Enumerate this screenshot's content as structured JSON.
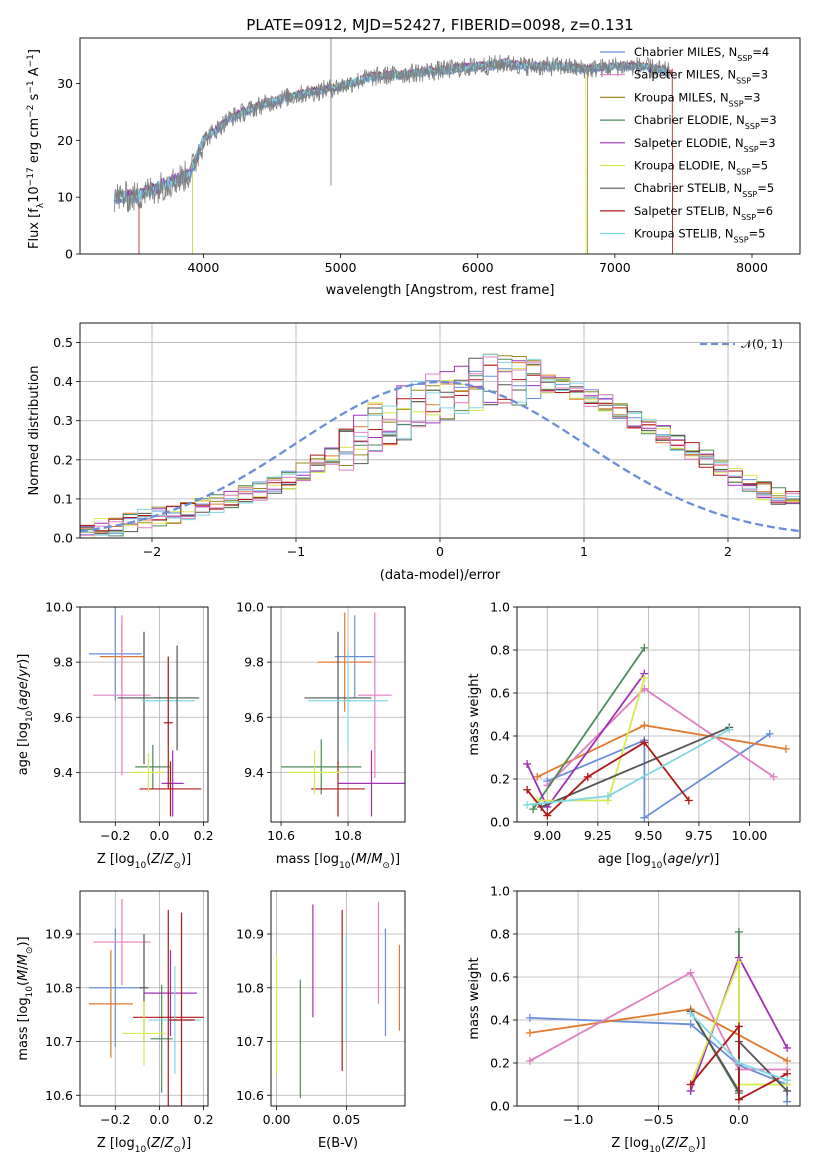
{
  "colors": {
    "chabrier_miles": "#6a8fd8",
    "salpeter_miles": "#e07a2e",
    "kroupa_miles": "#9a8a20",
    "chabrier_elodie": "#4d8a5a",
    "salpeter_elodie": "#a030b8",
    "kroupa_elodie": "#d8ea50",
    "chabrier_stelib": "#555555",
    "salpeter_stelib": "#b01818",
    "kroupa_stelib": "#80d8e0",
    "pink": "#e080c0",
    "orange": "#e07a2e",
    "olive": "#9a8a20",
    "spectrum_gray": "#808080",
    "normal": "#6a8fd8"
  },
  "chart_data": [
    {
      "id": "spectrum",
      "type": "line",
      "title": "PLATE=0912, MJD=52427, FIBERID=0098, z=0.131",
      "xlabel": "wavelength [Angstrom, rest frame]",
      "ylabel": "Flux [f_λ10^−17 erg cm^−2 s^−1 A^−1]",
      "xlim": [
        3100,
        8350
      ],
      "ylim": [
        0,
        38
      ],
      "xticks": [
        4000,
        5000,
        6000,
        7000,
        8000
      ],
      "yticks": [
        0,
        10,
        20,
        30
      ],
      "x": [
        3350,
        3500,
        3700,
        3900,
        4000,
        4200,
        4400,
        4600,
        4800,
        5000,
        5200,
        5400,
        5600,
        5800,
        6000,
        6200,
        6400,
        6600,
        6800,
        7000,
        7200,
        7300,
        7400
      ],
      "y": [
        10,
        10,
        12,
        14,
        20,
        24,
        26,
        27.5,
        28.5,
        29.5,
        31,
        31.5,
        32,
        32.5,
        33,
        33.5,
        33,
        33,
        32.5,
        33,
        33,
        32.5,
        32
      ],
      "model_cutoffs": [
        {
          "name": "Salpeter STELIB",
          "start": 3530,
          "end": 7420
        },
        {
          "name": "Kroupa MILES",
          "start": 3920,
          "end": 6800
        },
        {
          "name": "Kroupa ELODIE",
          "start": 3920,
          "end": 6790
        },
        {
          "name": "Kroupa STELIB",
          "start": 3920,
          "end": 7420
        }
      ],
      "legend": [
        {
          "base": "Chabrier MILES, N",
          "sub": "SSP",
          "tail": "=4",
          "color": "#6a8fd8"
        },
        {
          "base": "Salpeter MILES, N",
          "sub": "SSP",
          "tail": "=3",
          "color": "#e080c0"
        },
        {
          "base": "Kroupa MILES, N",
          "sub": "SSP",
          "tail": "=3",
          "color": "#9a8a20"
        },
        {
          "base": "Chabrier ELODIE, N",
          "sub": "SSP",
          "tail": "=3",
          "color": "#4d8a5a"
        },
        {
          "base": "Salpeter ELODIE, N",
          "sub": "SSP",
          "tail": "=3",
          "color": "#a030b8"
        },
        {
          "base": "Kroupa ELODIE, N",
          "sub": "SSP",
          "tail": "=5",
          "color": "#d8ea50"
        },
        {
          "base": "Chabrier STELIB, N",
          "sub": "SSP",
          "tail": "=5",
          "color": "#555555"
        },
        {
          "base": "Salpeter STELIB, N",
          "sub": "SSP",
          "tail": "=6",
          "color": "#b01818"
        },
        {
          "base": "Kroupa STELIB, N",
          "sub": "SSP",
          "tail": "=5",
          "color": "#80d8e0"
        }
      ],
      "legend_position": "right"
    },
    {
      "id": "residuals",
      "type": "histogram",
      "xlabel": "(data-model)/error",
      "ylabel": "Normed distribution",
      "xlim": [
        -2.5,
        2.5
      ],
      "ylim": [
        0,
        0.55
      ],
      "xticks": [
        -2,
        -1,
        0,
        1,
        2
      ],
      "yticks": [
        0.0,
        0.1,
        0.2,
        0.3,
        0.4,
        0.5
      ],
      "bin_width": 0.1,
      "bin_start": -2.5,
      "base_values": [
        0.02,
        0.025,
        0.03,
        0.04,
        0.05,
        0.055,
        0.06,
        0.07,
        0.08,
        0.09,
        0.1,
        0.11,
        0.12,
        0.135,
        0.15,
        0.17,
        0.19,
        0.21,
        0.24,
        0.26,
        0.28,
        0.3,
        0.32,
        0.34,
        0.36,
        0.37,
        0.385,
        0.395,
        0.4,
        0.4,
        0.4,
        0.4,
        0.395,
        0.385,
        0.375,
        0.36,
        0.345,
        0.325,
        0.305,
        0.285,
        0.265,
        0.24,
        0.22,
        0.2,
        0.18,
        0.16,
        0.14,
        0.12,
        0.105,
        0.095,
        0.08,
        0.07,
        0.06,
        0.05,
        0.045,
        0.04,
        0.035,
        0.03,
        0.03,
        0.025
      ],
      "legend": [
        {
          "label": "𝒩(0, 1)",
          "color": "#6a8fd8",
          "style": "dashed"
        }
      ],
      "legend_position": "top-right"
    },
    {
      "id": "age_vs_Z",
      "type": "errorbar",
      "xlabel": "Z [log10(Z/Z⊙)]",
      "ylabel": "age  [log10(age/yr)]",
      "xlim": [
        -0.36,
        0.22
      ],
      "ylim": [
        9.22,
        10.0
      ],
      "xticks": [
        -0.2,
        0.0,
        0.2
      ],
      "yticks": [
        9.4,
        9.6,
        9.8,
        10.0
      ],
      "points": [
        {
          "x": -0.2,
          "y": 9.83,
          "xerr": 0.12,
          "yerr": 0.17,
          "color": "#6a8fd8"
        },
        {
          "x": -0.17,
          "y": 9.82,
          "xerr": 0.1,
          "yerr": 0.12,
          "color": "#e07a2e"
        },
        {
          "x": -0.17,
          "y": 9.68,
          "xerr": 0.13,
          "yerr": 0.29,
          "color": "#e080c0"
        },
        {
          "x": -0.07,
          "y": 9.67,
          "xerr": 0.12,
          "yerr": 0.24,
          "color": "#555555"
        },
        {
          "x": -0.03,
          "y": 9.42,
          "xerr": 0.08,
          "yerr": 0.08,
          "color": "#4d8a5a"
        },
        {
          "x": 0.04,
          "y": 9.66,
          "xerr": 0.12,
          "yerr": 0.16,
          "color": "#80d8e0"
        },
        {
          "x": 0.08,
          "y": 9.67,
          "xerr": 0.1,
          "yerr": 0.19,
          "color": "#555555"
        },
        {
          "x": 0.06,
          "y": 9.36,
          "xerr": 0.05,
          "yerr": 0.12,
          "color": "#a030b8"
        },
        {
          "x": 0.05,
          "y": 9.34,
          "xerr": 0.14,
          "yerr": 0.1,
          "color": "#b01818"
        },
        {
          "x": 0.04,
          "y": 9.58,
          "xerr": 0.02,
          "yerr": 0.24,
          "color": "#b01818"
        },
        {
          "x": -0.05,
          "y": 9.4,
          "xerr": 0.07,
          "yerr": 0.07,
          "color": "#d8ea50"
        }
      ]
    },
    {
      "id": "age_vs_mass",
      "type": "errorbar",
      "xlabel": "mass [log10(M/M⊙)]",
      "ylabel": "",
      "xlim": [
        10.57,
        10.97
      ],
      "ylim": [
        9.22,
        10.0
      ],
      "xticks": [
        10.6,
        10.8
      ],
      "yticks": [
        9.4,
        9.6,
        9.8,
        10.0
      ],
      "points": [
        {
          "x": 10.82,
          "y": 9.82,
          "xerr": 0.06,
          "yerr": 0.15,
          "color": "#6a8fd8"
        },
        {
          "x": 10.79,
          "y": 9.8,
          "xerr": 0.08,
          "yerr": 0.18,
          "color": "#e07a2e"
        },
        {
          "x": 10.88,
          "y": 9.68,
          "xerr": 0.05,
          "yerr": 0.3,
          "color": "#e080c0"
        },
        {
          "x": 10.77,
          "y": 9.67,
          "xerr": 0.1,
          "yerr": 0.24,
          "color": "#555555"
        },
        {
          "x": 10.72,
          "y": 9.42,
          "xerr": 0.12,
          "yerr": 0.1,
          "color": "#4d8a5a"
        },
        {
          "x": 10.8,
          "y": 9.66,
          "xerr": 0.12,
          "yerr": 0.18,
          "color": "#80d8e0"
        },
        {
          "x": 10.87,
          "y": 9.36,
          "xerr": 0.1,
          "yerr": 0.12,
          "color": "#a030b8"
        },
        {
          "x": 10.77,
          "y": 9.34,
          "xerr": 0.08,
          "yerr": 0.1,
          "color": "#b01818"
        },
        {
          "x": 10.7,
          "y": 9.4,
          "xerr": 0.08,
          "yerr": 0.08,
          "color": "#d8ea50"
        }
      ]
    },
    {
      "id": "massweight_vs_age",
      "type": "line",
      "xlabel": "age  [log10(age/yr)]",
      "ylabel": "mass weight",
      "xlim": [
        8.85,
        10.25
      ],
      "ylim": [
        0,
        1
      ],
      "xticks": [
        9.0,
        9.25,
        9.5,
        9.75,
        10.0
      ],
      "yticks": [
        0.0,
        0.2,
        0.4,
        0.6,
        0.8,
        1.0
      ],
      "series": [
        {
          "color": "#6a8fd8",
          "x": [
            9.0,
            9.48,
            9.48,
            10.1
          ],
          "y": [
            0.19,
            0.38,
            0.02,
            0.41
          ]
        },
        {
          "color": "#e07a2e",
          "x": [
            8.95,
            9.48,
            10.18
          ],
          "y": [
            0.21,
            0.45,
            0.34
          ]
        },
        {
          "color": "#e080c0",
          "x": [
            9.0,
            9.48,
            10.12
          ],
          "y": [
            0.17,
            0.62,
            0.21
          ]
        },
        {
          "color": "#4d8a5a",
          "x": [
            8.93,
            9.48
          ],
          "y": [
            0.06,
            0.81
          ]
        },
        {
          "color": "#a030b8",
          "x": [
            8.9,
            9.0,
            9.48
          ],
          "y": [
            0.27,
            0.07,
            0.69
          ]
        },
        {
          "color": "#d8ea50",
          "x": [
            8.95,
            9.3,
            9.48
          ],
          "y": [
            0.1,
            0.1,
            0.67
          ]
        },
        {
          "color": "#555555",
          "x": [
            8.97,
            9.9
          ],
          "y": [
            0.07,
            0.44
          ]
        },
        {
          "color": "#b01818",
          "x": [
            8.9,
            9.0,
            9.2,
            9.48,
            9.7
          ],
          "y": [
            0.15,
            0.03,
            0.21,
            0.37,
            0.1
          ]
        },
        {
          "color": "#80d8e0",
          "x": [
            8.9,
            9.3,
            9.9
          ],
          "y": [
            0.08,
            0.12,
            0.43
          ]
        }
      ]
    },
    {
      "id": "mass_vs_Z",
      "type": "errorbar",
      "xlabel": "Z [log10(Z/Z⊙)]",
      "ylabel": "mass [log10(M/M⊙)]",
      "xlim": [
        -0.36,
        0.22
      ],
      "ylim": [
        10.58,
        10.98
      ],
      "xticks": [
        -0.2,
        0.0,
        0.2
      ],
      "yticks": [
        10.6,
        10.7,
        10.8,
        10.9
      ],
      "points": [
        {
          "x": -0.2,
          "y": 10.8,
          "xerr": 0.12,
          "yerr": 0.11,
          "color": "#6a8fd8"
        },
        {
          "x": -0.22,
          "y": 10.77,
          "xerr": 0.1,
          "yerr": 0.1,
          "color": "#e07a2e"
        },
        {
          "x": -0.17,
          "y": 10.885,
          "xerr": 0.13,
          "yerr": 0.08,
          "color": "#e080c0"
        },
        {
          "x": -0.07,
          "y": 10.8,
          "xerr": 0.02,
          "yerr": 0.1,
          "color": "#555555"
        },
        {
          "x": 0.01,
          "y": 10.705,
          "xerr": 0.05,
          "yerr": 0.1,
          "color": "#4d8a5a"
        },
        {
          "x": 0.05,
          "y": 10.79,
          "xerr": 0.12,
          "yerr": 0.08,
          "color": "#a030b8"
        },
        {
          "x": 0.04,
          "y": 10.745,
          "xerr": 0.16,
          "yerr": 0.2,
          "color": "#b01818"
        },
        {
          "x": 0.07,
          "y": 10.74,
          "xerr": 0.12,
          "yerr": 0.1,
          "color": "#80d8e0"
        },
        {
          "x": 0.1,
          "y": 10.74,
          "xerr": 0.06,
          "yerr": 0.2,
          "color": "#b01818"
        },
        {
          "x": -0.07,
          "y": 10.715,
          "xerr": 0.1,
          "yerr": 0.06,
          "color": "#d8ea50"
        }
      ]
    },
    {
      "id": "mass_vs_ebv",
      "type": "errorbar",
      "xlabel": "E(B-V)",
      "ylabel": "",
      "xlim": [
        -0.004,
        0.092
      ],
      "ylim": [
        10.58,
        10.98
      ],
      "xticks": [
        0.0,
        0.05
      ],
      "yticks": [
        10.6,
        10.7,
        10.8,
        10.9
      ],
      "points": [
        {
          "x": 0.0,
          "y": 10.75,
          "xerr": 0,
          "yerr": 0.11,
          "color": "#d8ea50"
        },
        {
          "x": 0.017,
          "y": 10.705,
          "xerr": 0,
          "yerr": 0.11,
          "color": "#4d8a5a"
        },
        {
          "x": 0.026,
          "y": 10.85,
          "xerr": 0,
          "yerr": 0.105,
          "color": "#a030b8"
        },
        {
          "x": 0.047,
          "y": 10.795,
          "xerr": 0,
          "yerr": 0.15,
          "color": "#b01818"
        },
        {
          "x": 0.05,
          "y": 10.8,
          "xerr": 0,
          "yerr": 0.1,
          "color": "#80d8e0"
        },
        {
          "x": 0.073,
          "y": 10.865,
          "xerr": 0,
          "yerr": 0.095,
          "color": "#e080c0"
        },
        {
          "x": 0.078,
          "y": 10.81,
          "xerr": 0,
          "yerr": 0.1,
          "color": "#6a8fd8"
        },
        {
          "x": 0.088,
          "y": 10.8,
          "xerr": 0,
          "yerr": 0.08,
          "color": "#e07a2e"
        }
      ]
    },
    {
      "id": "massweight_vs_Z",
      "type": "line",
      "xlabel": "Z [log10(Z/Z⊙)]",
      "ylabel": "mass weight",
      "xlim": [
        -1.38,
        0.38
      ],
      "ylim": [
        0,
        1
      ],
      "xticks": [
        -1.0,
        -0.5,
        0.0
      ],
      "yticks": [
        0.0,
        0.2,
        0.4,
        0.6,
        0.8,
        1.0
      ],
      "series": [
        {
          "color": "#6a8fd8",
          "x": [
            -1.3,
            -0.3,
            0.0,
            0.3,
            0.3
          ],
          "y": [
            0.41,
            0.38,
            0.19,
            0.1,
            0.02
          ]
        },
        {
          "color": "#e07a2e",
          "x": [
            -1.3,
            -0.3,
            0.3
          ],
          "y": [
            0.34,
            0.45,
            0.21
          ]
        },
        {
          "color": "#e080c0",
          "x": [
            -1.3,
            -0.3,
            0.0,
            0.3
          ],
          "y": [
            0.21,
            0.62,
            0.17,
            0.17
          ]
        },
        {
          "color": "#4d8a5a",
          "x": [
            -0.3,
            0.0,
            0.0
          ],
          "y": [
            0.44,
            0.06,
            0.81
          ]
        },
        {
          "color": "#a030b8",
          "x": [
            -0.3,
            0.0,
            0.3
          ],
          "y": [
            0.07,
            0.69,
            0.27
          ]
        },
        {
          "color": "#d8ea50",
          "x": [
            -0.3,
            0.0,
            0.0,
            0.3
          ],
          "y": [
            0.1,
            0.67,
            0.1,
            0.1
          ]
        },
        {
          "color": "#555555",
          "x": [
            -0.3,
            0.0,
            0.0,
            0.3
          ],
          "y": [
            0.44,
            0.07,
            0.3,
            0.07
          ]
        },
        {
          "color": "#b01818",
          "x": [
            -0.3,
            0.0,
            0.0,
            0.3
          ],
          "y": [
            0.1,
            0.37,
            0.03,
            0.15
          ]
        },
        {
          "color": "#80d8e0",
          "x": [
            -0.3,
            0.0,
            0.3
          ],
          "y": [
            0.43,
            0.2,
            0.12
          ]
        }
      ]
    }
  ]
}
